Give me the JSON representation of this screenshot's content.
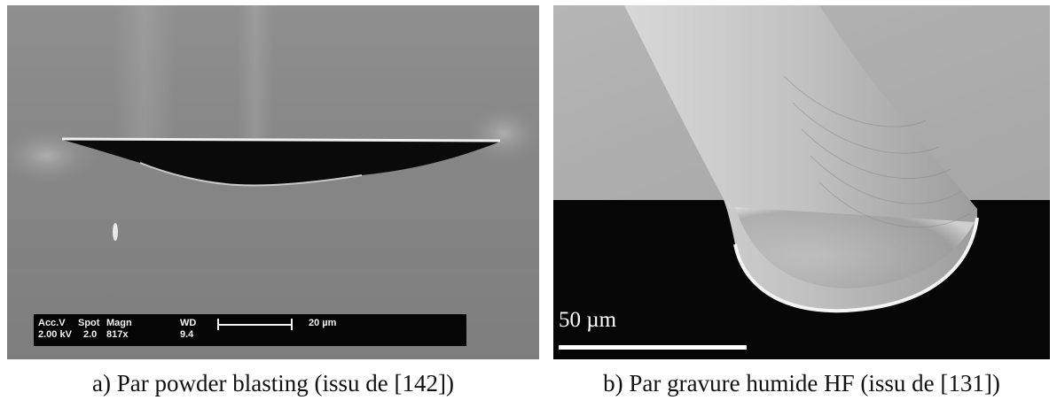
{
  "panel_a": {
    "caption": "a) Par powder blasting (issu de [142])",
    "sem_info": {
      "acc_v_label": "Acc.V",
      "acc_v_value": "2.00 kV",
      "spot_label": "Spot",
      "spot_value": "2.0",
      "magn_label": "Magn",
      "magn_value": "817x",
      "wd_label": "WD",
      "wd_value": "9.4",
      "scale_label": "20 µm"
    }
  },
  "panel_b": {
    "caption": "b) Par gravure humide HF (issu de [131])",
    "scale_label": "50 µm"
  }
}
